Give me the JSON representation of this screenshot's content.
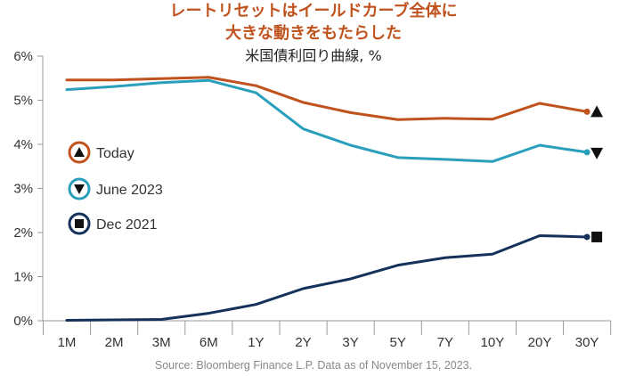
{
  "chart_data": {
    "type": "line",
    "title": "レートリセットはイールドカーブ全体に",
    "title_line2": "大きな動きをもたらした",
    "subtitle": "米国債利回り曲線, %",
    "categories": [
      "1M",
      "2M",
      "3M",
      "6M",
      "1Y",
      "2Y",
      "3Y",
      "5Y",
      "7Y",
      "10Y",
      "20Y",
      "30Y"
    ],
    "y_tick_labels": [
      "0%",
      "1%",
      "2%",
      "3%",
      "4%",
      "5%",
      "6%"
    ],
    "ylim": [
      0,
      6
    ],
    "grid": false,
    "legend_position": "left",
    "series": [
      {
        "name": "Today",
        "color": "#c0521d",
        "marker": "triangle-up",
        "values": [
          5.46,
          5.46,
          5.49,
          5.52,
          5.33,
          4.95,
          4.72,
          4.56,
          4.59,
          4.57,
          4.93,
          4.74
        ]
      },
      {
        "name": "June 2023",
        "color": "#2a9fbc",
        "marker": "triangle-down",
        "values": [
          5.24,
          5.31,
          5.4,
          5.45,
          5.17,
          4.35,
          3.98,
          3.7,
          3.66,
          3.61,
          3.98,
          3.82
        ]
      },
      {
        "name": "Dec 2021",
        "color": "#14315a",
        "marker": "square",
        "values": [
          0.01,
          0.02,
          0.03,
          0.17,
          0.37,
          0.73,
          0.95,
          1.26,
          1.43,
          1.51,
          1.93,
          1.9
        ]
      }
    ],
    "source": "Source: Bloomberg Finance L.P. Data as of November 15, 2023."
  }
}
